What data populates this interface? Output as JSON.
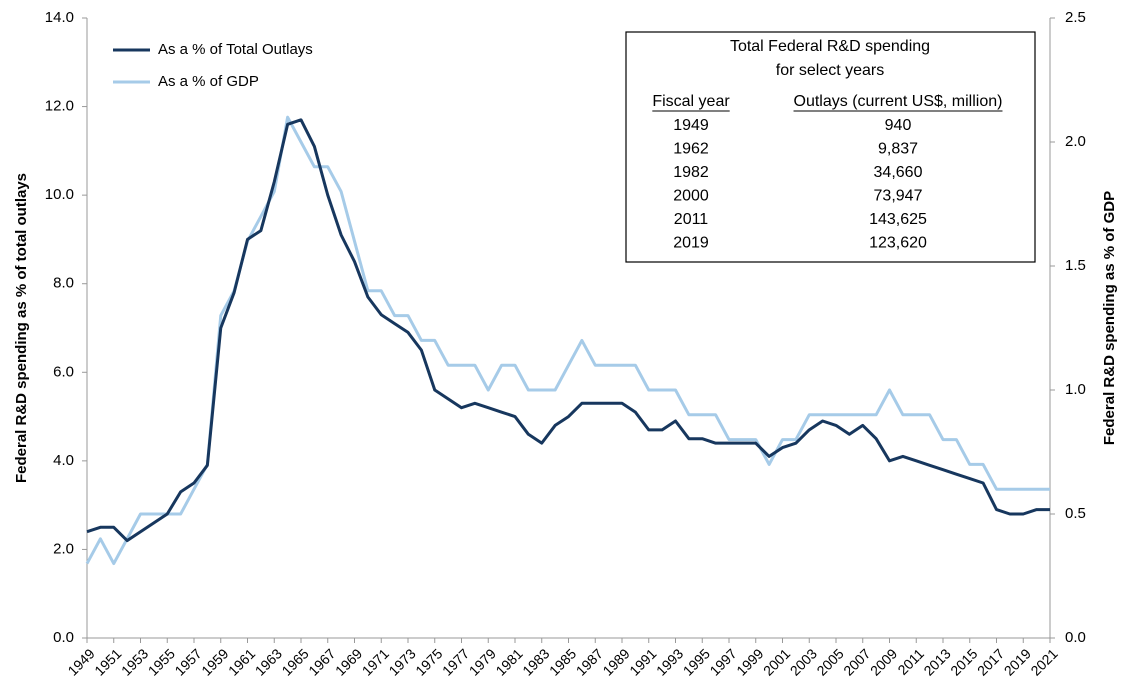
{
  "chart_data": {
    "type": "line",
    "y_label": "Federal R&D spending as % of total outlays",
    "y2_label": "Federal R&D spending as % of GDP",
    "legend": "top-left",
    "x": [
      1949,
      1950,
      1951,
      1952,
      1953,
      1954,
      1955,
      1956,
      1957,
      1958,
      1959,
      1960,
      1961,
      1962,
      1963,
      1964,
      1965,
      1966,
      1967,
      1968,
      1969,
      1970,
      1971,
      1972,
      1973,
      1974,
      1975,
      1976,
      1977,
      1978,
      1979,
      1980,
      1981,
      1982,
      1983,
      1984,
      1985,
      1986,
      1987,
      1988,
      1989,
      1990,
      1991,
      1992,
      1993,
      1994,
      1995,
      1996,
      1997,
      1998,
      1999,
      2000,
      2001,
      2002,
      2003,
      2004,
      2005,
      2006,
      2007,
      2008,
      2009,
      2010,
      2011,
      2012,
      2013,
      2014,
      2015,
      2016,
      2017,
      2018,
      2019,
      2020,
      2021
    ],
    "xlim": [
      1949,
      2021
    ],
    "xticks": [
      1949,
      1951,
      1953,
      1955,
      1957,
      1959,
      1961,
      1963,
      1965,
      1967,
      1969,
      1971,
      1973,
      1975,
      1977,
      1979,
      1981,
      1983,
      1985,
      1987,
      1989,
      1991,
      1993,
      1995,
      1997,
      1999,
      2001,
      2003,
      2005,
      2007,
      2009,
      2011,
      2013,
      2015,
      2017,
      2019,
      2021
    ],
    "ylim": [
      0,
      14
    ],
    "yticks": [
      {
        "value": 0,
        "label": "0.0"
      },
      {
        "value": 2,
        "label": "2.0"
      },
      {
        "value": 4,
        "label": "4.0"
      },
      {
        "value": 6,
        "label": "6.0"
      },
      {
        "value": 8,
        "label": "8.0"
      },
      {
        "value": 10,
        "label": "10.0"
      },
      {
        "value": 12,
        "label": "12.0"
      },
      {
        "value": 14,
        "label": "14.0"
      }
    ],
    "y2lim": [
      0,
      2.5
    ],
    "y2ticks": [
      {
        "value": 0,
        "label": "0.0"
      },
      0.5,
      {
        "value": 1,
        "label": "1.0"
      },
      1.5,
      {
        "value": 2,
        "label": "2.0"
      },
      2.5
    ],
    "series": [
      {
        "name": "As a % of Total Outlays",
        "color": "#17375e",
        "values": [
          2.4,
          2.5,
          2.5,
          2.2,
          2.4,
          2.6,
          2.8,
          3.3,
          3.5,
          3.9,
          7.0,
          7.8,
          9.0,
          9.2,
          10.3,
          11.6,
          11.7,
          11.1,
          10.0,
          9.1,
          8.5,
          7.7,
          7.3,
          7.1,
          6.9,
          6.5,
          5.6,
          5.4,
          5.2,
          5.3,
          5.2,
          5.1,
          5.0,
          4.6,
          4.4,
          4.8,
          5.0,
          5.3,
          5.3,
          5.3,
          5.3,
          5.1,
          4.7,
          4.7,
          4.9,
          4.5,
          4.5,
          4.4,
          4.4,
          4.4,
          4.4,
          4.1,
          4.3,
          4.4,
          4.7,
          4.9,
          4.8,
          4.6,
          4.8,
          4.5,
          4.0,
          4.1,
          4.0,
          3.9,
          3.8,
          3.7,
          3.6,
          3.5,
          2.9,
          2.8,
          2.8,
          2.9,
          2.9
        ]
      },
      {
        "name": "As a % of GDP",
        "color": "#a6cbe8",
        "axis": "y2",
        "values": [
          0.3,
          0.4,
          0.3,
          0.4,
          0.5,
          0.5,
          0.5,
          0.5,
          0.6,
          0.7,
          1.3,
          1.4,
          1.6,
          1.7,
          1.8,
          2.1,
          2.0,
          1.9,
          1.9,
          1.8,
          1.6,
          1.4,
          1.4,
          1.3,
          1.3,
          1.2,
          1.2,
          1.1,
          1.1,
          1.1,
          1.0,
          1.1,
          1.1,
          1.0,
          1.0,
          1.0,
          1.1,
          1.2,
          1.1,
          1.1,
          1.1,
          1.1,
          1.0,
          1.0,
          1.0,
          0.9,
          0.9,
          0.9,
          0.8,
          0.8,
          0.8,
          0.7,
          0.8,
          0.8,
          0.9,
          0.9,
          0.9,
          0.9,
          0.9,
          0.9,
          1.0,
          0.9,
          0.9,
          0.9,
          0.8,
          0.8,
          0.7,
          0.7,
          0.6,
          0.6,
          0.6,
          0.6,
          0.6
        ]
      }
    ],
    "table": {
      "title": [
        "Total Federal R&D spending",
        "for select years"
      ],
      "columns": [
        "Fiscal year",
        "Outlays (current US$, million)"
      ],
      "rows": [
        [
          "1949",
          "940"
        ],
        [
          "1962",
          "9,837"
        ],
        [
          "1982",
          "34,660"
        ],
        [
          "2000",
          "73,947"
        ],
        [
          "2011",
          "143,625"
        ],
        [
          "2019",
          "123,620"
        ]
      ]
    }
  }
}
